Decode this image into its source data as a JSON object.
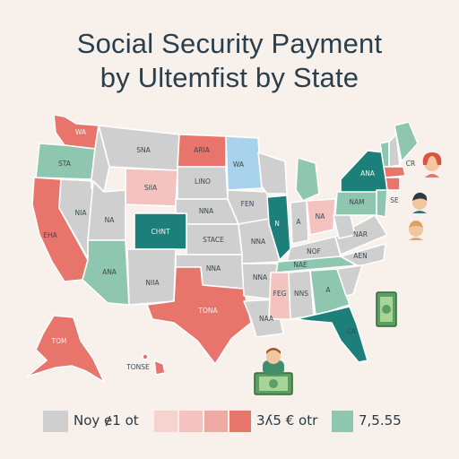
{
  "title": {
    "line1": "Social Security Payment",
    "line2": "by Ultemfist by State"
  },
  "colors": {
    "gray": "#cfcfcf",
    "salmon": "#e8756b",
    "pink": "#f4c3c0",
    "teal_dark": "#1c7f7a",
    "teal_light": "#8ec6b0",
    "blue_light": "#a9d3ec",
    "background": "#f8f0ea"
  },
  "states": {
    "wa": "WA",
    "or": "STA",
    "ca": "EHA",
    "nv": "NIA",
    "ut": "NA",
    "az": "ANA",
    "mt": "SNA",
    "wy": "SIIA",
    "nd": "ARIA",
    "mn": "WA",
    "sd": "LINO",
    "ne": "NNA",
    "co": "CHNT",
    "ks": "STACE",
    "ok": "NNA",
    "tx": "TONA",
    "mo": "NNA",
    "ia": "FEN",
    "ar": "NNA",
    "la": "NAA",
    "il": "N",
    "in": "A",
    "oh": "NA",
    "ky": "NOF",
    "tn": "NAE",
    "ms": "FEG",
    "al": "NNS",
    "ga": "A",
    "fl": "CA",
    "nc": "AEN",
    "va": "NAR",
    "ny": "ANA",
    "pa": "NAM",
    "nj": "SE",
    "me": "",
    "ak": "TOM",
    "hi": "TONSE",
    "nm": "NIIA",
    "ct": "CR"
  },
  "legend": {
    "label1": "Noy ɇ1 ot",
    "label2": "3ʎ5 € otr",
    "label3": "7,5.55"
  }
}
